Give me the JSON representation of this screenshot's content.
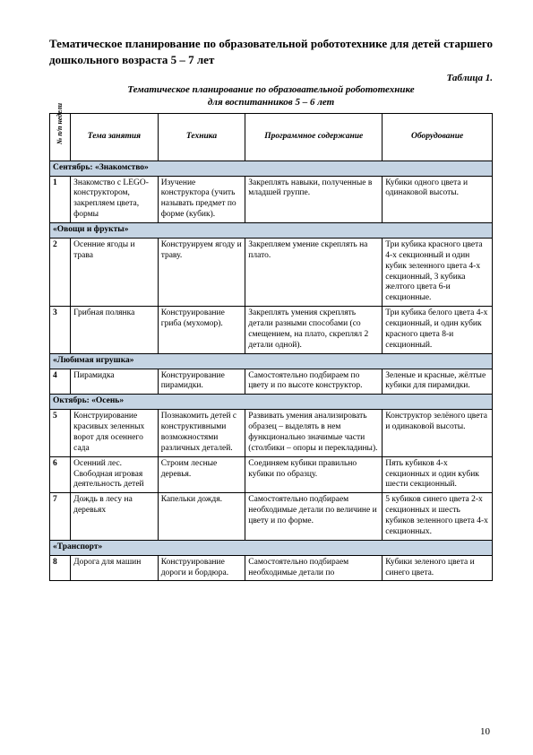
{
  "title": "Тематическое планирование по образовательной робототехнике для детей старшего дошкольного возраста 5 – 7 лет",
  "tableLabel": "Таблица 1.",
  "tableCaption": "Тематическое планирование по образовательной робототехнике\nдля воспитанников 5 – 6 лет",
  "headers": {
    "num": "№ п/п недели",
    "topic": "Тема занятия",
    "technique": "Техника",
    "program": "Программное содержание",
    "equipment": "Оборудование"
  },
  "colors": {
    "sectionBg": "#c5d4e3",
    "border": "#000000",
    "text": "#000000"
  },
  "fonts": {
    "body": "Times New Roman",
    "titleSize": 13,
    "cellSize": 9.5
  },
  "columnWidths": {
    "num": 16,
    "topic": 90,
    "technique": 90,
    "program": 145,
    "equipment": 115
  },
  "rows": [
    {
      "type": "section",
      "label": "Сентябрь: «Знакомство»"
    },
    {
      "type": "data",
      "num": "1",
      "topic": "Знакомство с LEGO-конструктором, закрепляем цвета, формы",
      "technique": "Изучение конструктора (учить называть предмет по форме (кубик).",
      "program": "Закреплять навыки, полученные в младшей группе.",
      "equipment": "Кубики одного цвета и одинаковой высоты."
    },
    {
      "type": "section",
      "label": "«Овощи и фрукты»"
    },
    {
      "type": "data",
      "num": "2",
      "topic": "Осенние ягоды и трава",
      "technique": "Конструируем ягоду и траву.",
      "program": "Закрепляем умение скреплять на плато.",
      "equipment": "Три кубика красного цвета 4-х секционный и один кубик зеленного цвета 4-х секционный, 3 кубика желтого цвета 6-и секционные."
    },
    {
      "type": "data",
      "num": "3",
      "topic": "Грибная полянка",
      "technique": "Конструирование гриба (мухомор).",
      "program": "Закреплять умения скреплять детали разными способами (со смещением, на плато, скреплял 2 детали одной).",
      "equipment": "Три кубика белого цвета 4-х секционный, и один кубик красного цвета 8-и секционный."
    },
    {
      "type": "section",
      "label": "«Любимая игрушка»"
    },
    {
      "type": "data",
      "num": "4",
      "topic": "Пирамидка",
      "technique": "Конструирование пирамидки.",
      "program": "Самостоятельно подбираем по цвету и по высоте конструктор.",
      "equipment": "Зеленые и красные, жёлтые кубики для пирамидки."
    },
    {
      "type": "section",
      "label": "Октябрь: «Осень»"
    },
    {
      "type": "data",
      "num": "5",
      "topic": "Конструирование красивых зеленных ворот для осеннего сада",
      "technique": "Познакомить детей с конструктивными возможностями различных деталей.",
      "program": "Развивать умения анализировать образец – выделять в нем функционально значимые части (столбики – опоры и перекладины).",
      "equipment": "Конструктор зелёного цвета и одинаковой высоты."
    },
    {
      "type": "data",
      "num": "6",
      "topic": "Осенний лес. Свободная игровая деятельность детей",
      "technique": "Строим лесные деревья.",
      "program": "Соединяем кубики правильно кубики по образцу.",
      "equipment": "Пять кубиков 4-х секционных и один кубик шести секционный."
    },
    {
      "type": "data",
      "num": "7",
      "topic": "Дождь в лесу на деревьях",
      "technique": "Капельки дождя.",
      "program": "Самостоятельно подбираем необходимые детали по величине и цвету и по форме.",
      "equipment": "5 кубиков синего цвета 2-х секционных и шесть кубиков зеленного цвета 4-х секционных."
    },
    {
      "type": "section",
      "label": "«Транспорт»"
    },
    {
      "type": "data",
      "num": "8",
      "topic": "Дорога для машин",
      "technique": "Конструирование дороги и бордюра.",
      "program": "Самостоятельно подбираем необходимые детали по",
      "equipment": "Кубики зеленого цвета и синего цвета."
    }
  ],
  "pageNumber": "10"
}
